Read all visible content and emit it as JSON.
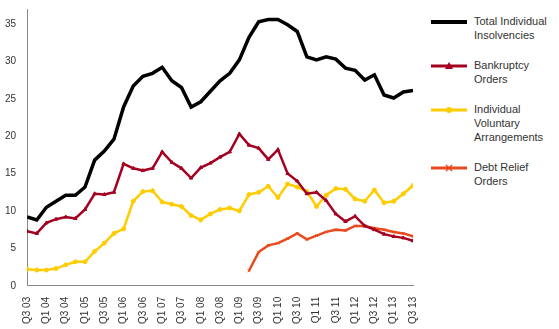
{
  "chart_data": {
    "type": "line",
    "categories": [
      "Q3 03",
      null,
      "Q1 04",
      null,
      "Q3 04",
      null,
      "Q1 05",
      null,
      "Q3 05",
      null,
      "Q1 06",
      null,
      "Q3 06",
      null,
      "Q1 07",
      null,
      "Q3 07",
      null,
      "Q1 08",
      null,
      "Q3 08",
      null,
      "Q1 09",
      null,
      "Q3 09",
      null,
      "Q1 10",
      null,
      "Q3 10",
      null,
      "Q1 11",
      null,
      "Q3 11",
      null,
      "Q1 12",
      null,
      "Q3 12",
      null,
      "Q1 13",
      null,
      "Q3 13"
    ],
    "series": [
      {
        "name": "Total Individual Insolvencies",
        "color": "#000000",
        "marker": "none",
        "values": [
          9.2,
          8.8,
          10.5,
          11.3,
          12.1,
          12.1,
          13.2,
          16.8,
          18,
          19.6,
          23.9,
          26.7,
          28,
          28.4,
          29.2,
          27.4,
          26.5,
          23.9,
          24.6,
          26,
          27.4,
          28.4,
          30.2,
          33.2,
          35.3,
          35.6,
          35.6,
          34.9,
          34,
          30.6,
          30.2,
          30.6,
          30.3,
          29.1,
          28.8,
          27.5,
          28.2,
          25.5,
          25.1,
          25.9,
          26.1
        ]
      },
      {
        "name": "Bankruptcy Orders",
        "color": "#a50021",
        "marker": "triangle",
        "values": [
          7.3,
          7.0,
          8.4,
          8.9,
          9.2,
          9.0,
          10.2,
          12.3,
          12.2,
          12.5,
          16.3,
          15.7,
          15.4,
          15.7,
          17.9,
          16.5,
          15.7,
          14.4,
          15.8,
          16.4,
          17.2,
          17.9,
          20.3,
          18.8,
          18.4,
          16.9,
          18.2,
          15.0,
          14.0,
          12.3,
          12.5,
          11.4,
          9.6,
          8.6,
          9.3,
          8.0,
          7.5,
          6.9,
          6.6,
          6.4,
          6.0
        ]
      },
      {
        "name": "Individual Voluntary Arrangements",
        "color": "#ffcc00",
        "marker": "circle",
        "values": [
          2.2,
          2.1,
          2.1,
          2.3,
          2.8,
          3.2,
          3.2,
          4.6,
          5.7,
          7.0,
          7.6,
          11.3,
          12.6,
          12.7,
          11.2,
          10.9,
          10.6,
          9.4,
          8.8,
          9.6,
          10.2,
          10.4,
          10.0,
          12.2,
          12.5,
          13.3,
          11.8,
          13.6,
          13.2,
          12.6,
          10.6,
          12.1,
          13.0,
          12.9,
          11.6,
          11.3,
          12.8,
          11.1,
          11.3,
          12.3,
          13.4
        ]
      },
      {
        "name": "Debt Relief Orders",
        "color": "#e8491d",
        "marker": "cross",
        "values": [
          null,
          null,
          null,
          null,
          null,
          null,
          null,
          null,
          null,
          null,
          null,
          null,
          null,
          null,
          null,
          null,
          null,
          null,
          null,
          null,
          null,
          null,
          null,
          2.0,
          4.5,
          5.4,
          5.7,
          6.3,
          7.0,
          6.2,
          6.7,
          7.2,
          7.5,
          7.4,
          8.0,
          8.0,
          7.7,
          7.5,
          7.2,
          7.0,
          6.6
        ]
      }
    ],
    "ylim": [
      0,
      37
    ],
    "yticks": [
      0,
      5,
      10,
      15,
      20,
      25,
      30,
      35
    ],
    "grid": false,
    "legend": "right"
  }
}
